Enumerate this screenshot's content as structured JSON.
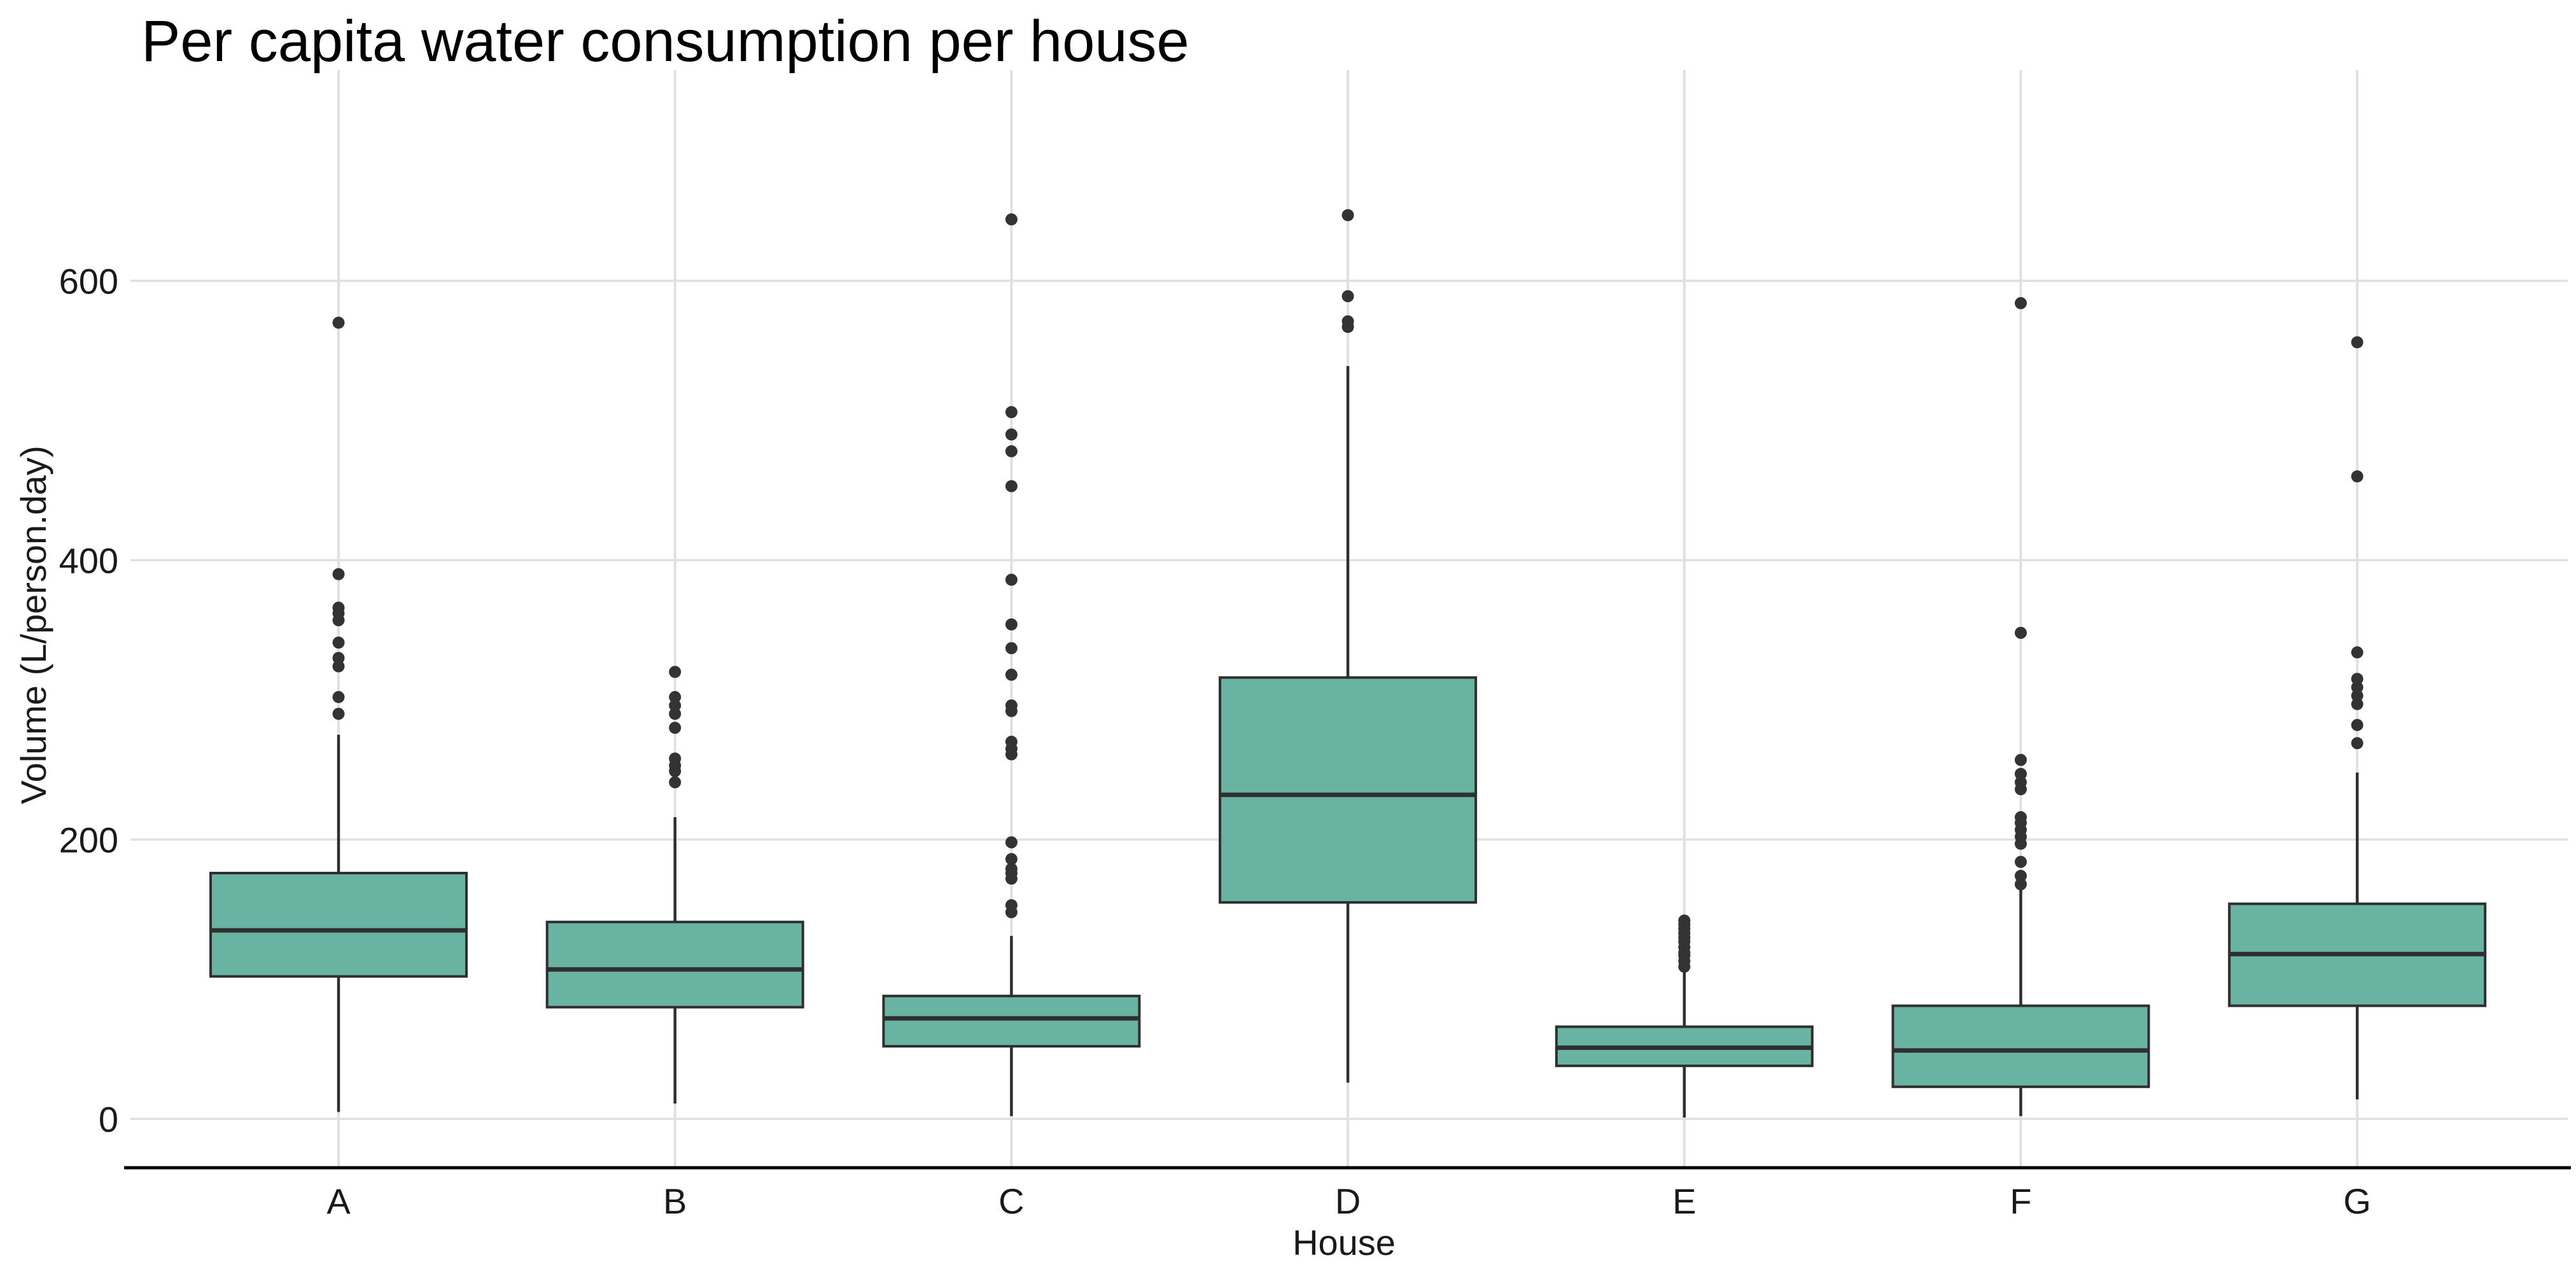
{
  "figure": {
    "title": "Per capita water consumption per house",
    "background": "#ffffff"
  },
  "chart_data": {
    "type": "boxplot",
    "title": "Per capita water consumption per house",
    "xlabel": "House",
    "ylabel": "Volume (L/person.day)",
    "categories": [
      "A",
      "B",
      "C",
      "D",
      "E",
      "F",
      "G"
    ],
    "y_ticks": [
      0,
      200,
      400,
      600
    ],
    "ylim": [
      -35,
      750
    ],
    "grid": true,
    "legend": "none",
    "box_fill": "#69b3a2",
    "box_stroke": "#2f2f2f",
    "median_stroke": "#2f2f2f",
    "outlier_color": "#333333",
    "grid_color": "#e0e0e0",
    "axis_line_color": "#000000",
    "series": [
      {
        "name": "A",
        "whisker_low": 5,
        "q1": 102,
        "median": 135,
        "q3": 176,
        "whisker_high": 275,
        "outliers": [
          290,
          302,
          324,
          330,
          341,
          357,
          362,
          366,
          390,
          570
        ]
      },
      {
        "name": "B",
        "whisker_low": 11,
        "q1": 80,
        "median": 107,
        "q3": 141,
        "whisker_high": 216,
        "outliers": [
          241,
          249,
          253,
          258,
          280,
          290,
          296,
          302,
          320
        ]
      },
      {
        "name": "C",
        "whisker_low": 2,
        "q1": 52,
        "median": 72,
        "q3": 88,
        "whisker_high": 131,
        "outliers": [
          148,
          153,
          172,
          176,
          179,
          186,
          198,
          261,
          265,
          270,
          292,
          296,
          318,
          337,
          354,
          386,
          453,
          478,
          490,
          506,
          644
        ]
      },
      {
        "name": "D",
        "whisker_low": 26,
        "q1": 155,
        "median": 232,
        "q3": 316,
        "whisker_high": 539,
        "outliers": [
          567,
          571,
          589,
          647
        ]
      },
      {
        "name": "E",
        "whisker_low": 1,
        "q1": 38,
        "median": 51,
        "q3": 66,
        "whisker_high": 108,
        "outliers": [
          109,
          113,
          117,
          119,
          123,
          127,
          130,
          133,
          136,
          139,
          142
        ]
      },
      {
        "name": "F",
        "whisker_low": 2,
        "q1": 23,
        "median": 49,
        "q3": 81,
        "whisker_high": 164,
        "outliers": [
          168,
          174,
          184,
          197,
          202,
          207,
          212,
          216,
          236,
          241,
          247,
          257,
          348,
          584
        ]
      },
      {
        "name": "G",
        "whisker_low": 14,
        "q1": 81,
        "median": 118,
        "q3": 154,
        "whisker_high": 248,
        "outliers": [
          269,
          282,
          297,
          303,
          309,
          315,
          334,
          460,
          556
        ]
      }
    ]
  }
}
